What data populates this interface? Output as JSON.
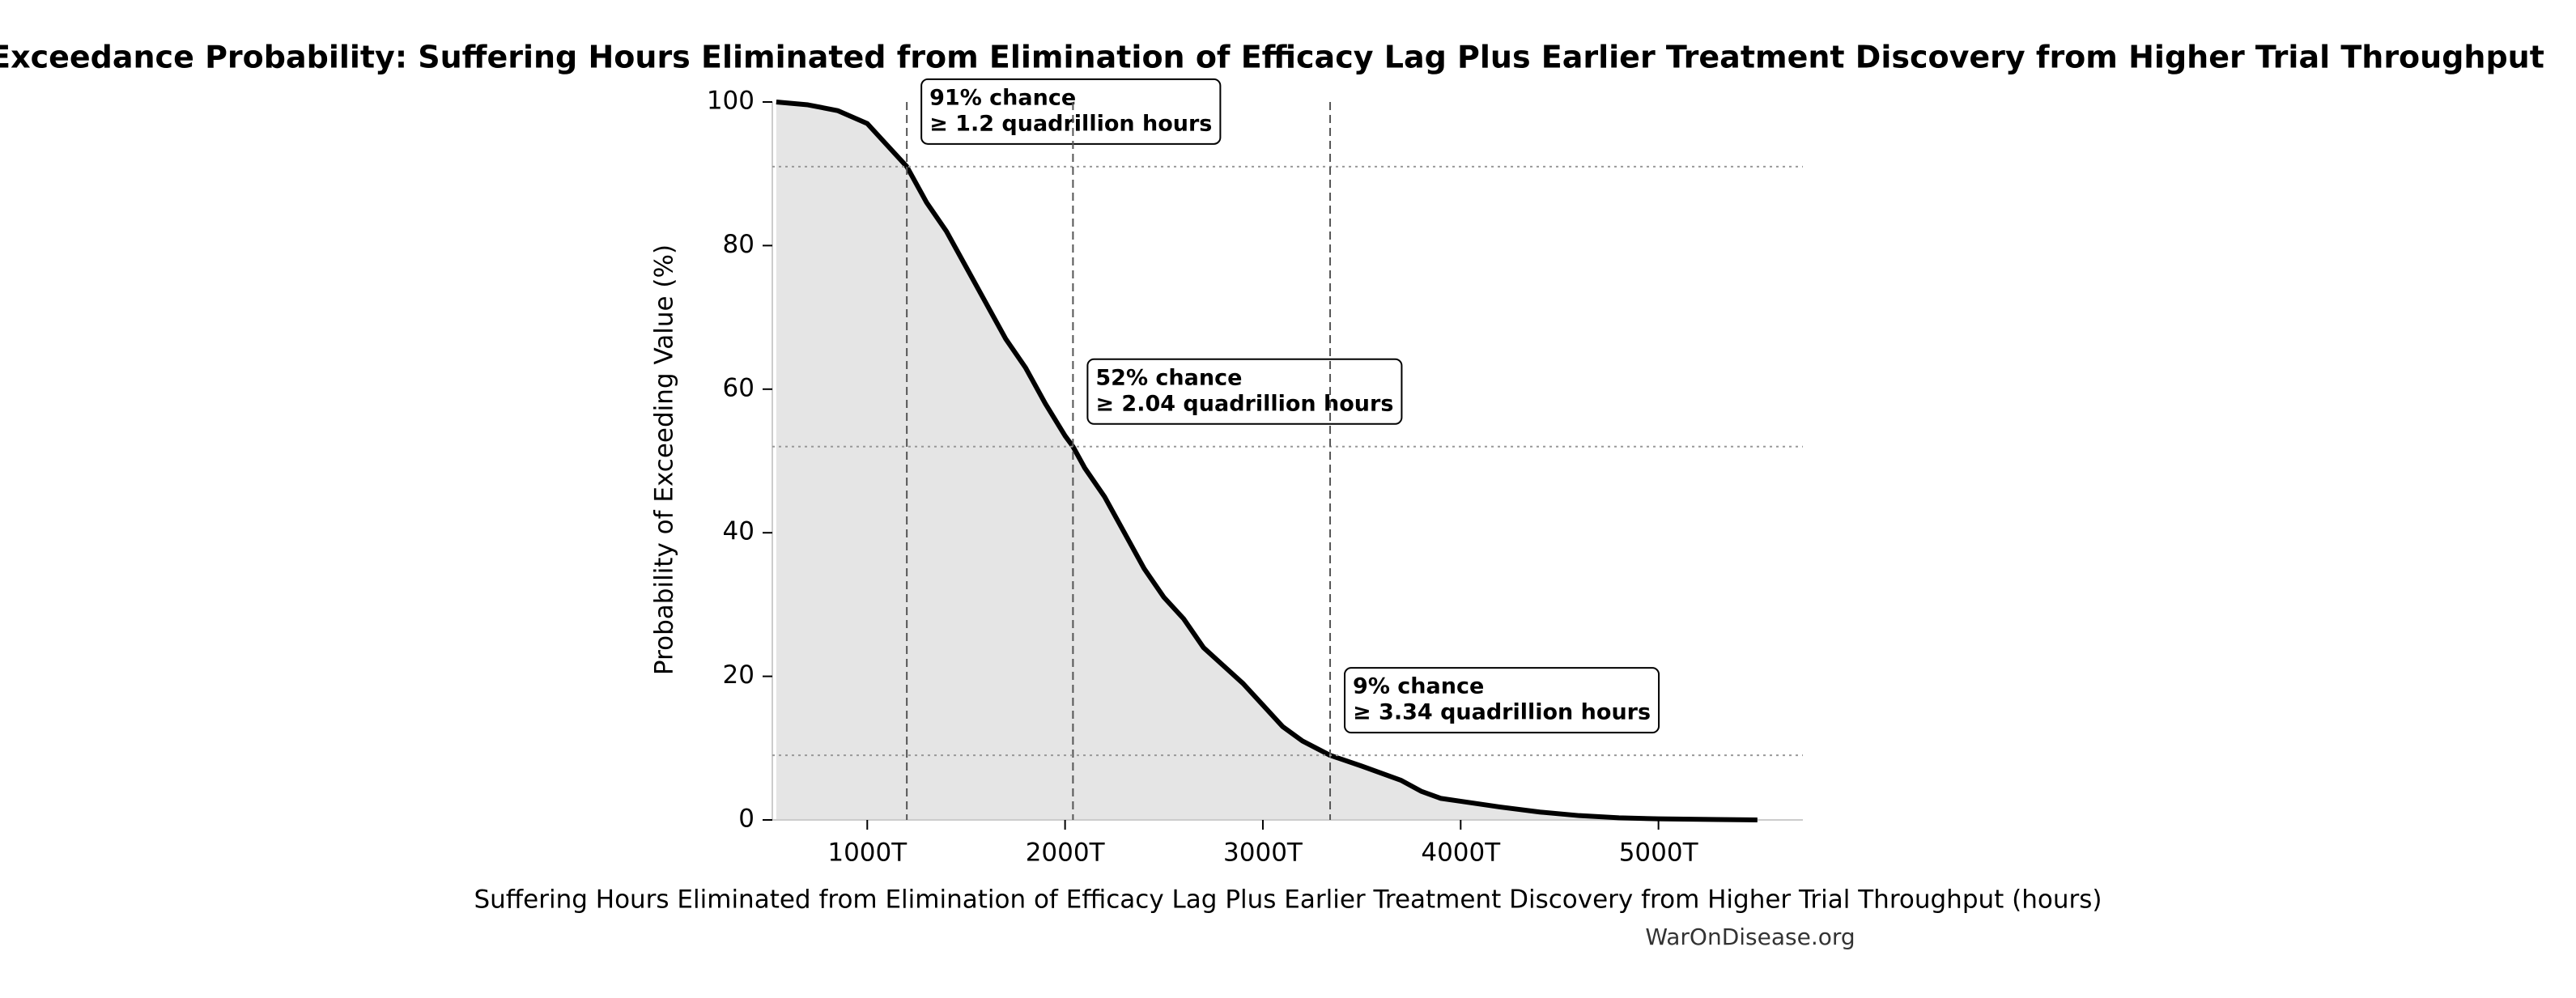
{
  "chart_data": {
    "type": "exceedance",
    "title": "Exceedance Probability: Suffering Hours Eliminated from Elimination of Efficacy Lag Plus Earlier Treatment Discovery from Higher Trial Throughput",
    "x_label": "Suffering Hours Eliminated from Elimination of Efficacy Lag Plus Earlier Treatment Discovery from Higher Trial Throughput (hours)",
    "y_label": "Probability of Exceeding Value (%)",
    "watermark": "WarOnDisease.org",
    "x": [
      540000000000000.0,
      700000000000000.0,
      850000000000000.0,
      1000000000000000.0,
      1100000000000000.0,
      1200000000000000.0,
      1300000000000000.0,
      1400000000000000.0,
      1500000000000000.0,
      1600000000000000.0,
      1700000000000000.0,
      1800000000000000.0,
      1900000000000000.0,
      2000000000000000.0,
      2040000000000000.0,
      2100000000000000.0,
      2200000000000000.0,
      2300000000000000.0,
      2400000000000000.0,
      2500000000000000.0,
      2600000000000000.0,
      2700000000000000.0,
      2800000000000000.0,
      2900000000000000.0,
      3000000000000000.0,
      3100000000000000.0,
      3200000000000000.0,
      3340000000000000.0,
      3500000000000000.0,
      3700000000000000.0,
      3800000000000000.0,
      3900000000000000.0,
      4000000000000000.0,
      4200000000000000.0,
      4400000000000000.0,
      4600000000000000.0,
      4800000000000000.0,
      5000000000000000.0,
      5300000000000000.0,
      5500000000000000.0
    ],
    "series": [
      {
        "color": "#000000",
        "fill": "#e5e5e5",
        "values": [
          100,
          99.6,
          98.8,
          97,
          94,
          91,
          86,
          82,
          77,
          72,
          67,
          63,
          58,
          53.5,
          52,
          49,
          45,
          40,
          35,
          31,
          28,
          24,
          21.5,
          19,
          16,
          13,
          11,
          9,
          7.5,
          5.5,
          4,
          3,
          2.6,
          1.8,
          1.1,
          0.6,
          0.3,
          0.15,
          0.05,
          0
        ]
      }
    ],
    "xlim": [
      520000000000000.0,
      5730000000000000.0
    ],
    "ylim": [
      0,
      100
    ],
    "xticks": [
      {
        "value": 1000000000000000.0,
        "label": "1000T"
      },
      {
        "value": 2000000000000000.0,
        "label": "2000T"
      },
      {
        "value": 3000000000000000.0,
        "label": "3000T"
      },
      {
        "value": 4000000000000000.0,
        "label": "4000T"
      },
      {
        "value": 5000000000000000.0,
        "label": "5000T"
      }
    ],
    "yticks": [
      0,
      20,
      40,
      60,
      80,
      100
    ],
    "annotations": [
      {
        "x": 1200000000000000.0,
        "y": 91,
        "lines": [
          "91% chance",
          "≥ 1.2 quadrillion hours"
        ]
      },
      {
        "x": 2040000000000000.0,
        "y": 52,
        "lines": [
          "52% chance",
          "≥ 2.04 quadrillion hours"
        ]
      },
      {
        "x": 3340000000000000.0,
        "y": 9,
        "lines": [
          "9% chance",
          "≥ 3.34 quadrillion hours"
        ]
      }
    ]
  }
}
